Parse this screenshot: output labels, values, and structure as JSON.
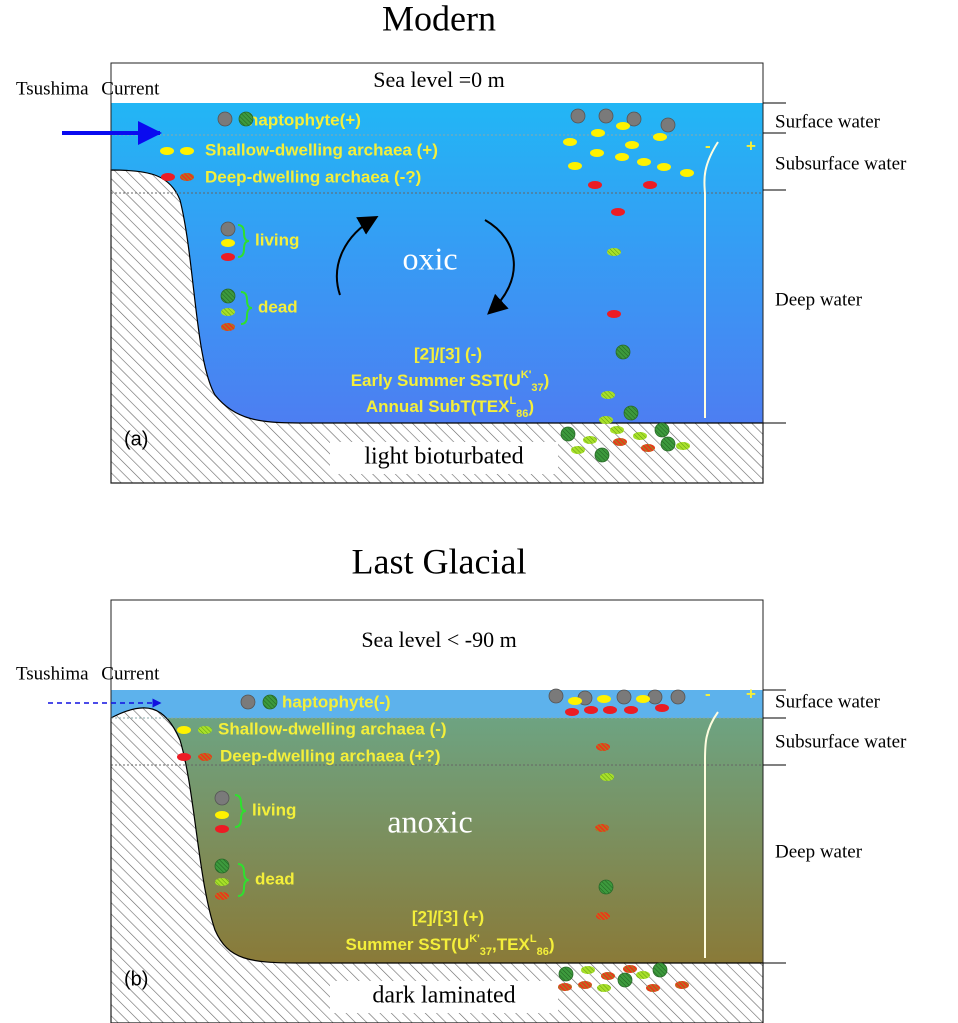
{
  "panels": [
    {
      "title": "Modern",
      "sea_level": "Sea level =0 m",
      "current": "Tsushima Current",
      "haptophyte": "haptophyte(+)",
      "shallow": "Shallow-dwelling archaea (+)",
      "deep": "Deep-dwelling archaea (-?)",
      "living": "living",
      "dead": "dead",
      "redox": "oxic",
      "ratio": "[2]/[3] (-)",
      "proxy_lines": [
        [
          {
            "text": "Early Summer SST(U"
          },
          {
            "sup": "K'"
          },
          {
            "sub": "37"
          },
          {
            "text": ")"
          }
        ],
        [
          {
            "text": "Annual SubT(TEX"
          },
          {
            "sup": "L"
          },
          {
            "sub": "86"
          },
          {
            "text": ")"
          }
        ]
      ],
      "minus": "-",
      "plus": "+",
      "panel_label": "(a)",
      "sediment": "light bioturbated",
      "layers": [
        "Surface water",
        "Subsurface water",
        "Deep water"
      ]
    },
    {
      "title": "Last Glacial",
      "sea_level": "Sea level < -90 m",
      "current": "Tsushima Current",
      "haptophyte": "haptophyte(-)",
      "shallow": "Shallow-dwelling archaea (-)",
      "deep": "Deep-dwelling archaea (+?)",
      "living": "living",
      "dead": "dead",
      "redox": "anoxic",
      "ratio": "[2]/[3] (+)",
      "proxy_lines": [
        [
          {
            "text": "Summer SST(U"
          },
          {
            "sup": "K'"
          },
          {
            "sub": "37"
          },
          {
            "text": ",TEX"
          },
          {
            "sup": "L"
          },
          {
            "sub": "86"
          },
          {
            "text": ")"
          }
        ]
      ],
      "minus": "-",
      "plus": "+",
      "panel_label": "(b)",
      "sediment": "dark laminated",
      "layers": [
        "Surface water",
        "Subsurface water",
        "Deep water"
      ]
    }
  ]
}
